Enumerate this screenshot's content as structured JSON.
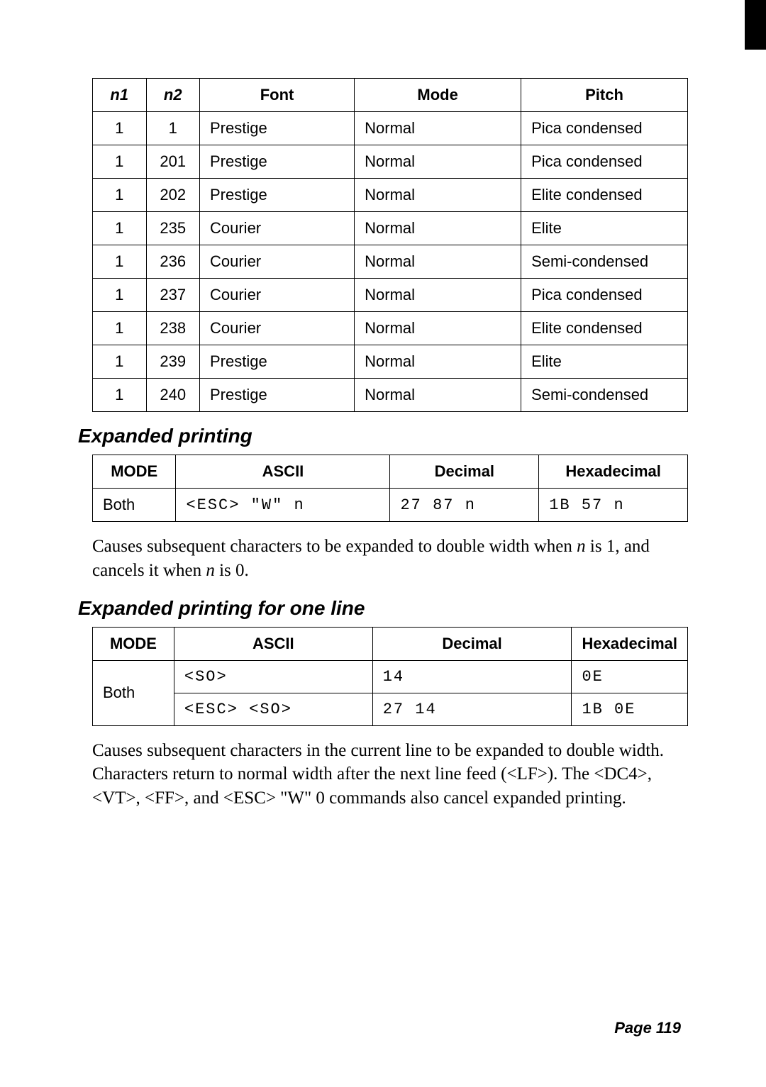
{
  "table1": {
    "headers": [
      "n1",
      "n2",
      "Font",
      "Mode",
      "Pitch"
    ],
    "rows": [
      [
        "1",
        "1",
        "Prestige",
        "Normal",
        "Pica condensed"
      ],
      [
        "1",
        "201",
        "Prestige",
        "Normal",
        "Pica condensed"
      ],
      [
        "1",
        "202",
        "Prestige",
        "Normal",
        "Elite condensed"
      ],
      [
        "1",
        "235",
        "Courier",
        "Normal",
        "Elite"
      ],
      [
        "1",
        "236",
        "Courier",
        "Normal",
        "Semi-condensed"
      ],
      [
        "1",
        "237",
        "Courier",
        "Normal",
        "Pica condensed"
      ],
      [
        "1",
        "238",
        "Courier",
        "Normal",
        "Elite condensed"
      ],
      [
        "1",
        "239",
        "Prestige",
        "Normal",
        "Elite"
      ],
      [
        "1",
        "240",
        "Prestige",
        "Normal",
        "Semi-condensed"
      ]
    ]
  },
  "section1_title": "Expanded printing",
  "table2": {
    "headers": [
      "MODE",
      "ASCII",
      "Decimal",
      "Hexadecimal"
    ],
    "row": {
      "mode": "Both",
      "ascii": "<ESC> \"W\" n",
      "decimal": "27 87 n",
      "hex": "1B 57 n"
    }
  },
  "para1_a": "Causes subsequent characters to be expanded to double width when ",
  "para1_b": "n",
  "para1_c": " is 1, and cancels it when ",
  "para1_d": "n",
  "para1_e": " is 0.",
  "section2_title": "Expanded printing for one line",
  "table3": {
    "headers": [
      "MODE",
      "ASCII",
      "Decimal",
      "Hexadecimal"
    ],
    "row1": {
      "ascii": "<SO>",
      "decimal": "14",
      "hex": "0E"
    },
    "row2": {
      "ascii": "<ESC> <SO>",
      "decimal": "27 14",
      "hex": "1B 0E"
    },
    "mode": "Both"
  },
  "para2": "Causes subsequent characters in the current line to be expanded to double width. Characters return to normal width after the next line feed (<LF>). The <DC4>, <VT>, <FF>, and <ESC> \"W\" 0 commands also cancel expanded printing.",
  "page_num": "Page 119"
}
